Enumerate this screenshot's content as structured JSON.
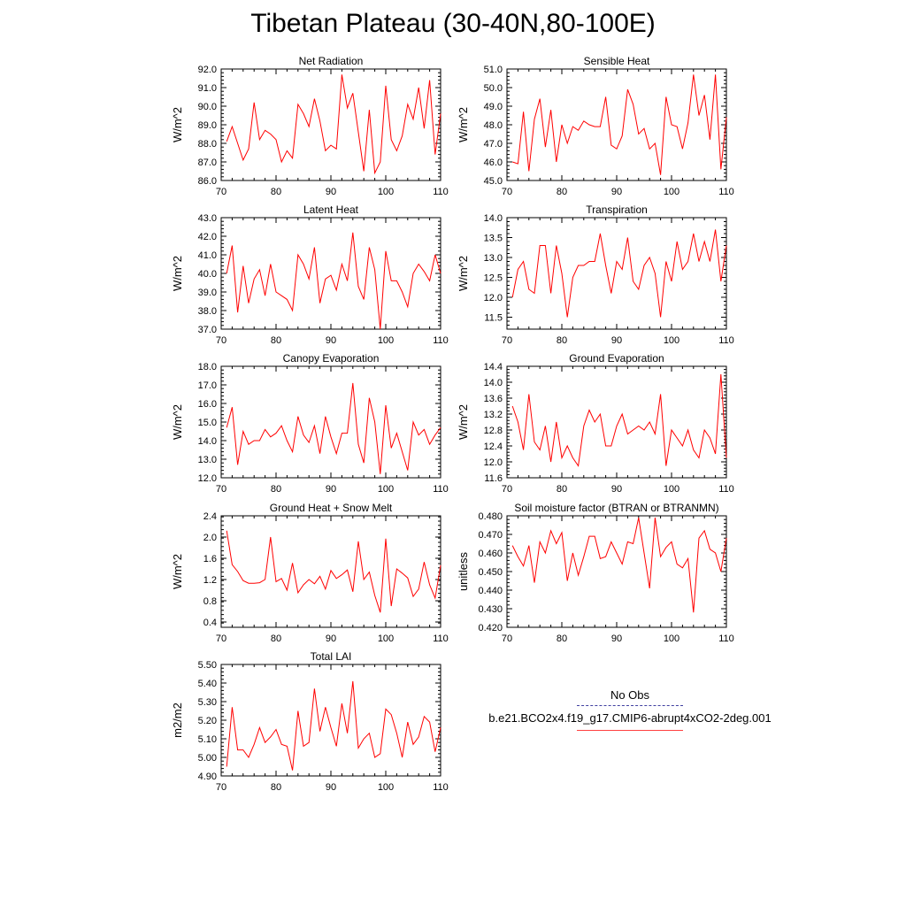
{
  "title": "Tibetan Plateau (30-40N,80-100E)",
  "legend": {
    "obs_label": "No Obs",
    "case_label": "b.e21.BCO2x4.f19_g17.CMIP6-abrupt4xCO2-2deg.001"
  },
  "colors": {
    "series": "#ff0000",
    "obs": "#4040a0",
    "axis": "#000000"
  },
  "chart_data": [
    {
      "type": "line",
      "title": "Net Radiation",
      "ylabel": "W/m^2",
      "xlabel": "",
      "xlim": [
        70,
        110
      ],
      "ylim": [
        86,
        92
      ],
      "xticks": [
        70,
        80,
        90,
        100,
        110
      ],
      "yticks": [
        86.0,
        87.0,
        88.0,
        89.0,
        90.0,
        91.0,
        92.0
      ],
      "ydecimals": 1,
      "x": [
        71,
        72,
        73,
        74,
        75,
        76,
        77,
        78,
        79,
        80,
        81,
        82,
        83,
        84,
        85,
        86,
        87,
        88,
        89,
        90,
        91,
        92,
        93,
        94,
        95,
        96,
        97,
        98,
        99,
        100,
        101,
        102,
        103,
        104,
        105,
        106,
        107,
        108,
        109,
        110
      ],
      "series": [
        {
          "name": "b.e21.BCO2x4.f19_g17.CMIP6-abrupt4xCO2-2deg.001",
          "values": [
            88.1,
            88.9,
            88.0,
            87.1,
            87.7,
            90.2,
            88.2,
            88.7,
            88.5,
            88.2,
            87.0,
            87.6,
            87.2,
            90.1,
            89.6,
            88.9,
            90.4,
            89.2,
            87.6,
            87.9,
            87.7,
            91.7,
            89.9,
            90.7,
            88.6,
            86.5,
            89.8,
            86.4,
            87.0,
            91.1,
            88.2,
            87.6,
            88.4,
            90.1,
            89.3,
            91.0,
            88.8,
            91.4,
            87.4,
            89.6
          ]
        }
      ]
    },
    {
      "type": "line",
      "title": "Sensible Heat",
      "ylabel": "W/m^2",
      "xlabel": "",
      "xlim": [
        70,
        110
      ],
      "ylim": [
        45,
        51
      ],
      "xticks": [
        70,
        80,
        90,
        100,
        110
      ],
      "yticks": [
        45.0,
        46.0,
        47.0,
        48.0,
        49.0,
        50.0,
        51.0
      ],
      "ydecimals": 1,
      "x": [
        71,
        72,
        73,
        74,
        75,
        76,
        77,
        78,
        79,
        80,
        81,
        82,
        83,
        84,
        85,
        86,
        87,
        88,
        89,
        90,
        91,
        92,
        93,
        94,
        95,
        96,
        97,
        98,
        99,
        100,
        101,
        102,
        103,
        104,
        105,
        106,
        107,
        108,
        109,
        110
      ],
      "series": [
        {
          "name": "b.e21.BCO2x4.f19_g17.CMIP6-abrupt4xCO2-2deg.001",
          "values": [
            46.0,
            45.9,
            48.7,
            45.5,
            48.3,
            49.4,
            46.8,
            48.8,
            46.0,
            48.0,
            47.0,
            47.9,
            47.7,
            48.2,
            48.0,
            47.9,
            47.9,
            49.5,
            46.9,
            46.7,
            47.4,
            49.9,
            49.1,
            47.5,
            47.8,
            46.7,
            47.0,
            45.3,
            49.5,
            48.0,
            47.9,
            46.7,
            48.1,
            50.7,
            48.5,
            49.6,
            47.2,
            50.7,
            45.6,
            48.4
          ]
        }
      ]
    },
    {
      "type": "line",
      "title": "Latent Heat",
      "ylabel": "W/m^2",
      "xlabel": "",
      "xlim": [
        70,
        110
      ],
      "ylim": [
        37,
        43
      ],
      "xticks": [
        70,
        80,
        90,
        100,
        110
      ],
      "yticks": [
        37.0,
        38.0,
        39.0,
        40.0,
        41.0,
        42.0,
        43.0
      ],
      "ydecimals": 1,
      "x": [
        71,
        72,
        73,
        74,
        75,
        76,
        77,
        78,
        79,
        80,
        81,
        82,
        83,
        84,
        85,
        86,
        87,
        88,
        89,
        90,
        91,
        92,
        93,
        94,
        95,
        96,
        97,
        98,
        99,
        100,
        101,
        102,
        103,
        104,
        105,
        106,
        107,
        108,
        109,
        110
      ],
      "series": [
        {
          "name": "b.e21.BCO2x4.f19_g17.CMIP6-abrupt4xCO2-2deg.001",
          "values": [
            40.0,
            41.5,
            37.9,
            40.4,
            38.4,
            39.7,
            40.2,
            38.8,
            40.5,
            39.0,
            38.8,
            38.6,
            38.0,
            41.0,
            40.5,
            39.7,
            41.4,
            38.4,
            39.7,
            39.9,
            39.1,
            40.5,
            39.6,
            42.2,
            39.3,
            38.6,
            41.4,
            40.2,
            37.0,
            41.2,
            39.6,
            39.6,
            39.0,
            38.2,
            40.0,
            40.5,
            40.1,
            39.6,
            41.0,
            40.0
          ]
        }
      ]
    },
    {
      "type": "line",
      "title": "Transpiration",
      "ylabel": "W/m^2",
      "xlabel": "",
      "xlim": [
        70,
        110
      ],
      "ylim": [
        11.2,
        14.0
      ],
      "xticks": [
        70,
        80,
        90,
        100,
        110
      ],
      "yticks": [
        11.5,
        12.0,
        12.5,
        13.0,
        13.5,
        14.0
      ],
      "ydecimals": 1,
      "x": [
        71,
        72,
        73,
        74,
        75,
        76,
        77,
        78,
        79,
        80,
        81,
        82,
        83,
        84,
        85,
        86,
        87,
        88,
        89,
        90,
        91,
        92,
        93,
        94,
        95,
        96,
        97,
        98,
        99,
        100,
        101,
        102,
        103,
        104,
        105,
        106,
        107,
        108,
        109,
        110
      ],
      "series": [
        {
          "name": "b.e21.BCO2x4.f19_g17.CMIP6-abrupt4xCO2-2deg.001",
          "values": [
            12.0,
            12.7,
            12.9,
            12.2,
            12.1,
            13.3,
            13.3,
            12.1,
            13.3,
            12.6,
            11.5,
            12.5,
            12.8,
            12.8,
            12.9,
            12.9,
            13.6,
            12.8,
            12.1,
            12.9,
            12.7,
            13.5,
            12.4,
            12.2,
            12.8,
            13.0,
            12.6,
            11.5,
            12.9,
            12.4,
            13.4,
            12.7,
            12.9,
            13.6,
            12.9,
            13.4,
            12.9,
            13.7,
            12.4,
            13.3
          ]
        }
      ]
    },
    {
      "type": "line",
      "title": "Canopy Evaporation",
      "ylabel": "W/m^2",
      "xlabel": "",
      "xlim": [
        70,
        110
      ],
      "ylim": [
        12,
        18
      ],
      "xticks": [
        70,
        80,
        90,
        100,
        110
      ],
      "yticks": [
        12.0,
        13.0,
        14.0,
        15.0,
        16.0,
        17.0,
        18.0
      ],
      "ydecimals": 1,
      "x": [
        71,
        72,
        73,
        74,
        75,
        76,
        77,
        78,
        79,
        80,
        81,
        82,
        83,
        84,
        85,
        86,
        87,
        88,
        89,
        90,
        91,
        92,
        93,
        94,
        95,
        96,
        97,
        98,
        99,
        100,
        101,
        102,
        103,
        104,
        105,
        106,
        107,
        108,
        109,
        110
      ],
      "series": [
        {
          "name": "b.e21.BCO2x4.f19_g17.CMIP6-abrupt4xCO2-2deg.001",
          "values": [
            14.7,
            15.8,
            12.7,
            14.5,
            13.8,
            14.0,
            14.0,
            14.6,
            14.2,
            14.4,
            14.8,
            14.0,
            13.4,
            15.3,
            14.3,
            13.9,
            14.8,
            13.3,
            15.3,
            14.2,
            13.3,
            14.4,
            14.4,
            17.1,
            13.8,
            12.8,
            16.3,
            15.0,
            12.2,
            15.9,
            13.6,
            14.4,
            13.4,
            12.4,
            15.0,
            14.3,
            14.6,
            13.8,
            14.3,
            14.7
          ]
        }
      ]
    },
    {
      "type": "line",
      "title": "Ground Evaporation",
      "ylabel": "W/m^2",
      "xlabel": "",
      "xlim": [
        70,
        110
      ],
      "ylim": [
        11.6,
        14.4
      ],
      "xticks": [
        70,
        80,
        90,
        100,
        110
      ],
      "yticks": [
        11.6,
        12.0,
        12.4,
        12.8,
        13.2,
        13.6,
        14.0,
        14.4
      ],
      "ydecimals": 1,
      "x": [
        71,
        72,
        73,
        74,
        75,
        76,
        77,
        78,
        79,
        80,
        81,
        82,
        83,
        84,
        85,
        86,
        87,
        88,
        89,
        90,
        91,
        92,
        93,
        94,
        95,
        96,
        97,
        98,
        99,
        100,
        101,
        102,
        103,
        104,
        105,
        106,
        107,
        108,
        109,
        110
      ],
      "series": [
        {
          "name": "b.e21.BCO2x4.f19_g17.CMIP6-abrupt4xCO2-2deg.001",
          "values": [
            13.4,
            13.0,
            12.3,
            13.7,
            12.5,
            12.3,
            12.9,
            12.0,
            13.0,
            12.1,
            12.4,
            12.1,
            11.9,
            12.9,
            13.3,
            13.0,
            13.2,
            12.4,
            12.4,
            12.9,
            13.2,
            12.7,
            12.8,
            12.9,
            12.8,
            13.0,
            12.7,
            13.7,
            11.9,
            12.8,
            12.6,
            12.4,
            12.8,
            12.3,
            12.1,
            12.8,
            12.6,
            12.2,
            14.2,
            12.1
          ]
        }
      ]
    },
    {
      "type": "line",
      "title": "Ground Heat + Snow Melt",
      "ylabel": "W/m^2",
      "xlabel": "",
      "xlim": [
        70,
        110
      ],
      "ylim": [
        0.3,
        2.4
      ],
      "xticks": [
        70,
        80,
        90,
        100,
        110
      ],
      "yticks": [
        0.4,
        0.8,
        1.2,
        1.6,
        2.0,
        2.4
      ],
      "ydecimals": 1,
      "x": [
        71,
        72,
        73,
        74,
        75,
        76,
        77,
        78,
        79,
        80,
        81,
        82,
        83,
        84,
        85,
        86,
        87,
        88,
        89,
        90,
        91,
        92,
        93,
        94,
        95,
        96,
        97,
        98,
        99,
        100,
        101,
        102,
        103,
        104,
        105,
        106,
        107,
        108,
        109,
        110
      ],
      "series": [
        {
          "name": "b.e21.BCO2x4.f19_g17.CMIP6-abrupt4xCO2-2deg.001",
          "values": [
            2.12,
            1.48,
            1.35,
            1.18,
            1.13,
            1.13,
            1.14,
            1.2,
            2.0,
            1.16,
            1.22,
            1.0,
            1.51,
            0.95,
            1.1,
            1.2,
            1.12,
            1.26,
            1.02,
            1.37,
            1.22,
            1.29,
            1.38,
            0.97,
            1.92,
            1.2,
            1.34,
            0.9,
            0.58,
            1.97,
            0.7,
            1.4,
            1.32,
            1.23,
            0.88,
            1.02,
            1.53,
            1.1,
            0.85,
            1.47
          ]
        }
      ]
    },
    {
      "type": "line",
      "title": "Soil moisture factor (BTRAN or BTRANMN)",
      "ylabel": "unitless",
      "xlabel": "",
      "xlim": [
        70,
        110
      ],
      "ylim": [
        0.42,
        0.48
      ],
      "xticks": [
        70,
        80,
        90,
        100,
        110
      ],
      "yticks": [
        0.42,
        0.43,
        0.44,
        0.45,
        0.46,
        0.47,
        0.48
      ],
      "ydecimals": 3,
      "x": [
        71,
        72,
        73,
        74,
        75,
        76,
        77,
        78,
        79,
        80,
        81,
        82,
        83,
        84,
        85,
        86,
        87,
        88,
        89,
        90,
        91,
        92,
        93,
        94,
        95,
        96,
        97,
        98,
        99,
        100,
        101,
        102,
        103,
        104,
        105,
        106,
        107,
        108,
        109,
        110
      ],
      "series": [
        {
          "name": "b.e21.BCO2x4.f19_g17.CMIP6-abrupt4xCO2-2deg.001",
          "values": [
            0.464,
            0.458,
            0.453,
            0.464,
            0.444,
            0.466,
            0.46,
            0.472,
            0.465,
            0.471,
            0.445,
            0.46,
            0.448,
            0.458,
            0.469,
            0.469,
            0.457,
            0.458,
            0.466,
            0.46,
            0.454,
            0.466,
            0.465,
            0.479,
            0.46,
            0.441,
            0.479,
            0.458,
            0.463,
            0.466,
            0.454,
            0.452,
            0.457,
            0.428,
            0.468,
            0.472,
            0.462,
            0.46,
            0.45,
            0.468
          ]
        }
      ]
    },
    {
      "type": "line",
      "title": "Total LAI",
      "ylabel": "m2/m2",
      "xlabel": "",
      "xlim": [
        70,
        110
      ],
      "ylim": [
        4.9,
        5.5
      ],
      "xticks": [
        70,
        80,
        90,
        100,
        110
      ],
      "yticks": [
        4.9,
        5.0,
        5.1,
        5.2,
        5.3,
        5.4,
        5.5
      ],
      "ydecimals": 2,
      "x": [
        71,
        72,
        73,
        74,
        75,
        76,
        77,
        78,
        79,
        80,
        81,
        82,
        83,
        84,
        85,
        86,
        87,
        88,
        89,
        90,
        91,
        92,
        93,
        94,
        95,
        96,
        97,
        98,
        99,
        100,
        101,
        102,
        103,
        104,
        105,
        106,
        107,
        108,
        109,
        110
      ],
      "series": [
        {
          "name": "b.e21.BCO2x4.f19_g17.CMIP6-abrupt4xCO2-2deg.001",
          "values": [
            4.95,
            5.27,
            5.04,
            5.04,
            5.0,
            5.07,
            5.16,
            5.08,
            5.11,
            5.15,
            5.07,
            5.06,
            4.93,
            5.25,
            5.06,
            5.08,
            5.37,
            5.14,
            5.27,
            5.16,
            5.06,
            5.29,
            5.13,
            5.41,
            5.05,
            5.1,
            5.13,
            5.0,
            5.02,
            5.26,
            5.23,
            5.13,
            5.0,
            5.19,
            5.07,
            5.11,
            5.22,
            5.19,
            5.03,
            5.16
          ]
        }
      ]
    }
  ]
}
